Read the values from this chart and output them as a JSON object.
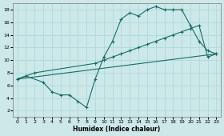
{
  "xlabel": "Humidex (Indice chaleur)",
  "ylabel": "",
  "xlim": [
    -0.5,
    23.5
  ],
  "ylim": [
    1,
    19
  ],
  "yticks": [
    2,
    4,
    6,
    8,
    10,
    12,
    14,
    16,
    18
  ],
  "xticks": [
    0,
    1,
    2,
    3,
    4,
    5,
    6,
    7,
    8,
    9,
    10,
    11,
    12,
    13,
    14,
    15,
    16,
    17,
    18,
    19,
    20,
    21,
    22,
    23
  ],
  "bg_color": "#cce8e8",
  "line_color": "#1a6b6b",
  "line1_x": [
    0,
    1,
    3,
    4,
    5,
    6,
    7,
    8,
    9,
    10,
    11,
    12,
    13,
    14,
    15,
    16,
    17,
    18,
    19,
    20,
    21,
    22,
    23
  ],
  "line1_y": [
    7.0,
    7.5,
    6.5,
    5.0,
    4.5,
    4.5,
    3.5,
    2.5,
    7.0,
    10.5,
    13.0,
    16.5,
    17.5,
    17.0,
    18.0,
    18.5,
    18.0,
    18.0,
    18.0,
    15.5,
    13.0,
    11.5,
    11.0
  ],
  "line2_x": [
    0,
    1,
    2,
    9,
    10,
    11,
    12,
    13,
    14,
    15,
    16,
    17,
    18,
    19,
    20,
    21,
    22,
    23
  ],
  "line2_y": [
    7.0,
    7.5,
    8.0,
    9.5,
    10.0,
    10.5,
    11.0,
    11.5,
    12.0,
    12.5,
    13.0,
    13.5,
    14.0,
    14.5,
    15.0,
    15.5,
    10.5,
    11.0
  ],
  "line3_x": [
    0,
    23
  ],
  "line3_y": [
    7.0,
    11.0
  ],
  "grid_color": "#aad8d8",
  "marker": "+"
}
